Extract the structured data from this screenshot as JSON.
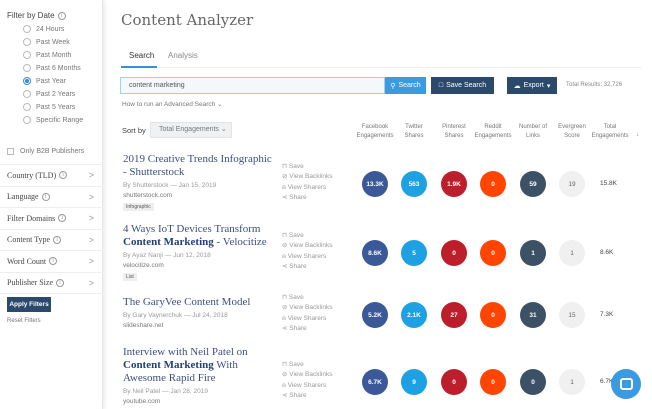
{
  "sidebar": {
    "date_heading": "Filter by Date",
    "date_options": [
      "24 Hours",
      "Past Week",
      "Past Month",
      "Past 6 Months",
      "Past Year",
      "Past 2 Years",
      "Past 5 Years",
      "Specific Range"
    ],
    "selected_date": "Past Year",
    "b2b_label": "Only B2B Publishers",
    "filters": [
      "Country (TLD)",
      "Language",
      "Filter Domains",
      "Content Type",
      "Word Count",
      "Publisher Size"
    ],
    "apply_label": "Apply Filters",
    "reset_label": "Reset Filters"
  },
  "header": {
    "title": "Content Analyzer"
  },
  "tabs": [
    {
      "label": "Search",
      "active": true
    },
    {
      "label": "Analysis",
      "active": false
    }
  ],
  "search": {
    "value": "content marketing",
    "search_label": "Search",
    "save_label": "Save Search",
    "export_label": "Export",
    "total_results": "Total Results: 32,726",
    "advanced_link": "How to run an Advanced Search"
  },
  "sort": {
    "label": "Sort by",
    "value": "Total Engagements"
  },
  "columns": [
    "Facebook Engagements",
    "Twitter Shares",
    "Pinterest Shares",
    "Reddit Engagements",
    "Number of Links",
    "Evergreen Score",
    "Total Engagements"
  ],
  "colors": {
    "facebook": "#3b5998",
    "twitter": "#1da1e2",
    "pinterest": "#bd1e2c",
    "reddit": "#ff4500",
    "links": "#3d5166",
    "evergreen": "#f0f0f0",
    "accent": "#3b9be0",
    "dark": "#2b4a6b"
  },
  "actions": [
    "Save",
    "View Backlinks",
    "View Sharers",
    "Share"
  ],
  "results": [
    {
      "title_pre": "2019 Creative Trends Infographic - Shutterstock",
      "title_bold": "",
      "title_post": "",
      "author": "By Shutterstock",
      "date": "Jan 15, 2019",
      "domain": "shutterstock.com",
      "tag": "Infographic",
      "metrics": [
        "13.3K",
        "563",
        "1.9K",
        "0",
        "59",
        "19"
      ],
      "total": "15.8K"
    },
    {
      "title_pre": "4 Ways IoT Devices Transform ",
      "title_bold": "Content Marketing",
      "title_post": " - Velocitize",
      "author": "By Ayaz Nanji",
      "date": "Jun 12, 2018",
      "domain": "velocitize.com",
      "tag": "List",
      "metrics": [
        "8.6K",
        "5",
        "0",
        "0",
        "1",
        "1"
      ],
      "total": "8.6K"
    },
    {
      "title_pre": "The GaryVee Content Model",
      "title_bold": "",
      "title_post": "",
      "author": "By Gary Vaynerchuk",
      "date": "Jul 24, 2018",
      "domain": "slideshare.net",
      "tag": "",
      "metrics": [
        "5.2K",
        "2.1K",
        "27",
        "0",
        "31",
        "15"
      ],
      "total": "7.3K"
    },
    {
      "title_pre": "Interview with Neil Patel on ",
      "title_bold": "Content Marketing",
      "title_post": " With Awesome Rapid Fire",
      "author": "By Neil Patel",
      "date": "Jan 28, 2019",
      "domain": "youtube.com",
      "tag": "",
      "metrics": [
        "6.7K",
        "9",
        "0",
        "0",
        "0",
        "1"
      ],
      "total": "6.7K"
    }
  ]
}
